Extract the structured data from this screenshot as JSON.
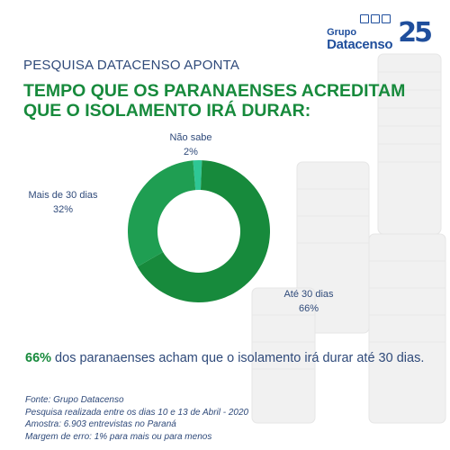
{
  "header": {
    "logo_group": "Grupo",
    "logo_name": "Datacenso",
    "logo_anniversary": "25"
  },
  "subheading": "PESQUISA DATACENSO APONTA",
  "title_line1": "TEMPO QUE OS PARANAENSES ACREDITAM",
  "title_line2": "QUE O ISOLAMENTO IRÁ DURAR:",
  "chart_data": {
    "type": "pie",
    "donut": true,
    "categories": [
      "Até 30 dias",
      "Mais de 30 dias",
      "Não sabe"
    ],
    "values": [
      66,
      32,
      2
    ],
    "value_labels": [
      "66%",
      "32%",
      "2%"
    ],
    "colors": [
      "#178a3c",
      "#1f9e52",
      "#2ec795"
    ]
  },
  "conclusion": {
    "highlight": "66%",
    "text": " dos paranaenses acham que o isolamento irá durar até 30 dias."
  },
  "footnotes": [
    "Fonte: Grupo Datacenso",
    "Pesquisa realizada entre os dias 10 e 13 de Abril - 2020",
    "Amostra: 6.903 entrevistas no Paraná",
    "Margem de erro: 1% para mais ou para menos"
  ]
}
